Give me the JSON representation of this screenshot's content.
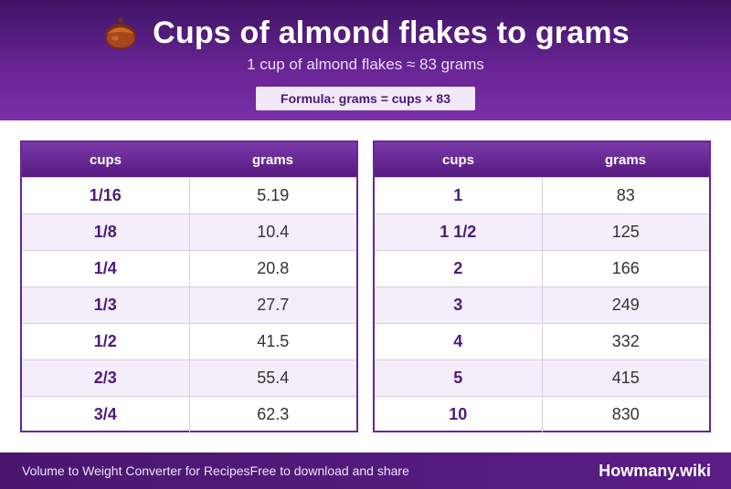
{
  "header": {
    "title": "Cups of almond flakes to grams",
    "subtitle": "1 cup of almond flakes ≈ 83 grams",
    "formula": "Formula: grams = cups × 83",
    "icon": "almond-nut-icon"
  },
  "tables": {
    "left": {
      "col_cups": "cups",
      "col_grams": "grams",
      "rows": [
        {
          "cups": "1/16",
          "grams": "5.19"
        },
        {
          "cups": "1/8",
          "grams": "10.4"
        },
        {
          "cups": "1/4",
          "grams": "20.8"
        },
        {
          "cups": "1/3",
          "grams": "27.7"
        },
        {
          "cups": "1/2",
          "grams": "41.5"
        },
        {
          "cups": "2/3",
          "grams": "55.4"
        },
        {
          "cups": "3/4",
          "grams": "62.3"
        }
      ]
    },
    "right": {
      "col_cups": "cups",
      "col_grams": "grams",
      "rows": [
        {
          "cups": "1",
          "grams": "83"
        },
        {
          "cups": "1 1/2",
          "grams": "125"
        },
        {
          "cups": "2",
          "grams": "166"
        },
        {
          "cups": "3",
          "grams": "249"
        },
        {
          "cups": "4",
          "grams": "332"
        },
        {
          "cups": "5",
          "grams": "415"
        },
        {
          "cups": "10",
          "grams": "830"
        }
      ]
    }
  },
  "footer": {
    "left_text_1": "Volume to Weight Converter for Recipes",
    "left_text_2": "Free to download and share",
    "brand": "Howmany.wiki"
  },
  "colors": {
    "accent": "#6a2596",
    "header_dark": "#3f1466",
    "row_alt": "#f3eefa"
  }
}
